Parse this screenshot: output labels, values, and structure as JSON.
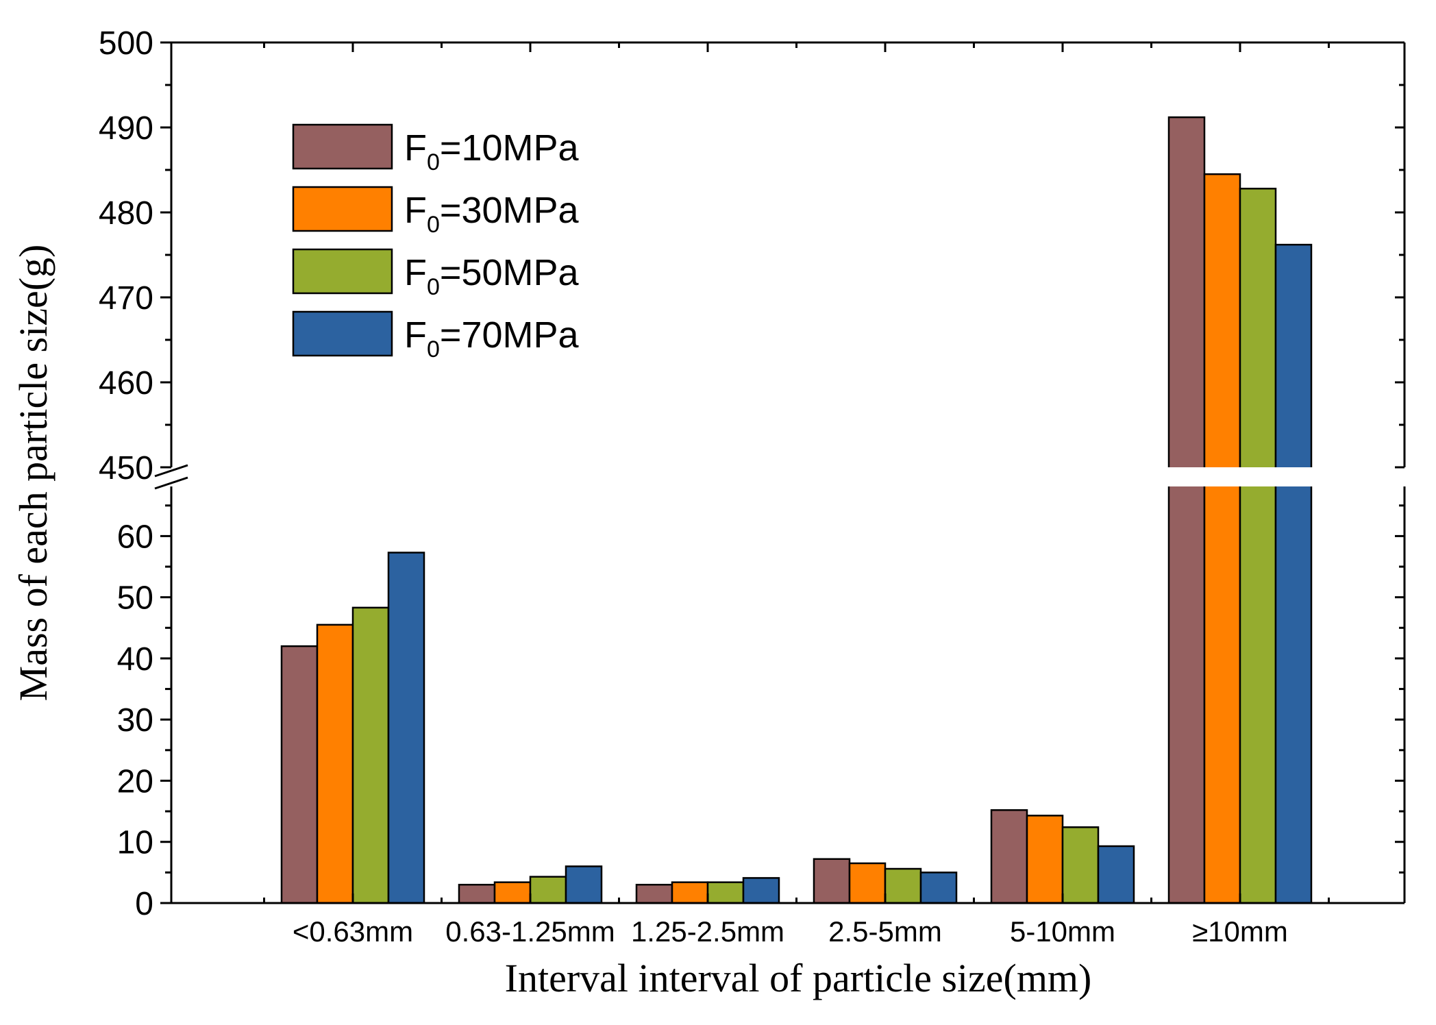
{
  "chart_data": {
    "type": "bar",
    "title": "",
    "xlabel": "Interval interval of particle size(mm)",
    "ylabel": "Mass of each particle size(g)",
    "categories": [
      "<0.63mm",
      "0.63-1.25mm",
      "1.25-2.5mm",
      "2.5-5mm",
      "5-10mm",
      "≥10mm"
    ],
    "series": [
      {
        "name": "F0=10MPa",
        "label_main": "F",
        "label_sub": "0",
        "label_rest": "=10MPa",
        "color": "#956060",
        "values": [
          42.0,
          3.0,
          3.0,
          7.2,
          15.2,
          491.2
        ]
      },
      {
        "name": "F0=30MPa",
        "label_main": "F",
        "label_sub": "0",
        "label_rest": "=30MPa",
        "color": "#ff8000",
        "values": [
          45.5,
          3.4,
          3.4,
          6.5,
          14.3,
          484.5
        ]
      },
      {
        "name": "F0=50MPa",
        "label_main": "F",
        "label_sub": "0",
        "label_rest": "=50MPa",
        "color": "#95ac2f",
        "values": [
          48.3,
          4.3,
          3.4,
          5.6,
          12.4,
          482.8
        ]
      },
      {
        "name": "F0=70MPa",
        "label_main": "F",
        "label_sub": "0",
        "label_rest": "=70MPa",
        "color": "#2c62a0",
        "values": [
          57.3,
          6.0,
          4.1,
          5.0,
          9.3,
          476.2
        ]
      }
    ],
    "y_axis_break": {
      "lower_range": [
        0,
        68
      ],
      "upper_range": [
        450,
        500
      ]
    },
    "lower_ticks": [
      "0",
      "10",
      "20",
      "30",
      "40",
      "50",
      "60"
    ],
    "upper_ticks": [
      "450",
      "460",
      "470",
      "480",
      "490",
      "500"
    ],
    "legend_position": "top-left",
    "grid": false
  }
}
